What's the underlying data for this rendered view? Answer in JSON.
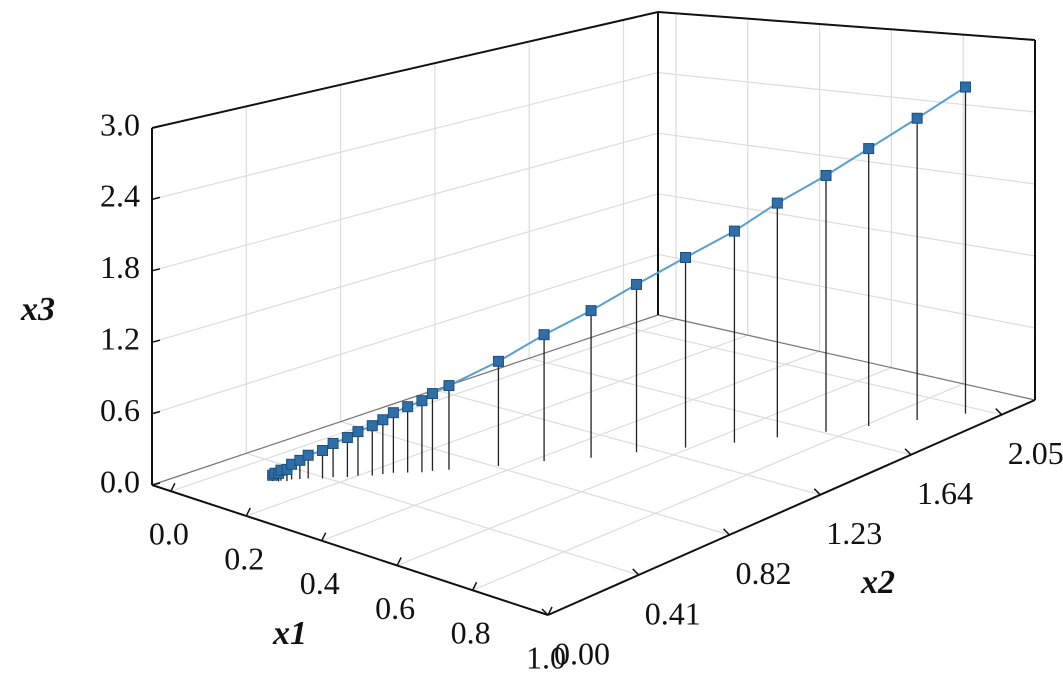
{
  "chart_data": {
    "type": "line3d",
    "xlabel": "x1",
    "ylabel": "x2",
    "zlabel": "x3",
    "xlim": [
      -0.05,
      1.0
    ],
    "ylim": [
      0,
      2.2
    ],
    "zlim": [
      0,
      3.0
    ],
    "xticks": [
      {
        "value": 0,
        "label": "0.0"
      },
      0.2,
      0.4,
      0.6,
      0.8,
      {
        "value": 1,
        "label": "1.0"
      }
    ],
    "yticks": [
      {
        "value": 0,
        "label": "0.00"
      },
      0.41,
      0.82,
      1.23,
      1.64,
      2.05
    ],
    "zticks": [
      {
        "value": 0,
        "label": "0.0"
      },
      0.6,
      1.2,
      1.8,
      2.4,
      {
        "value": 3,
        "label": "3.0"
      }
    ],
    "grid": true,
    "drop_lines": true,
    "series": [
      {
        "color": "#2f6ea6",
        "line_color": "#5a9fd0",
        "x": [
          0.1,
          0.1,
          0.11,
          0.11,
          0.12,
          0.12,
          0.13,
          0.14,
          0.16,
          0.17,
          0.19,
          0.2,
          0.22,
          0.23,
          0.24,
          0.26,
          0.28,
          0.29,
          0.31,
          0.37,
          0.42,
          0.48,
          0.53,
          0.59,
          0.65,
          0.7,
          0.76,
          0.81,
          0.87,
          0.93
        ],
        "y": [
          0.28,
          0.29,
          0.29,
          0.3,
          0.31,
          0.33,
          0.35,
          0.37,
          0.4,
          0.43,
          0.46,
          0.49,
          0.52,
          0.55,
          0.58,
          0.61,
          0.64,
          0.67,
          0.71,
          0.83,
          0.95,
          1.06,
          1.18,
          1.3,
          1.42,
          1.53,
          1.65,
          1.76,
          1.88,
          2.0
        ],
        "z": [
          0.05,
          0.06,
          0.07,
          0.09,
          0.1,
          0.13,
          0.16,
          0.2,
          0.24,
          0.29,
          0.34,
          0.38,
          0.43,
          0.47,
          0.52,
          0.57,
          0.62,
          0.67,
          0.73,
          0.91,
          1.1,
          1.28,
          1.46,
          1.65,
          1.83,
          2.02,
          2.2,
          2.37,
          2.56,
          2.75
        ]
      }
    ]
  }
}
